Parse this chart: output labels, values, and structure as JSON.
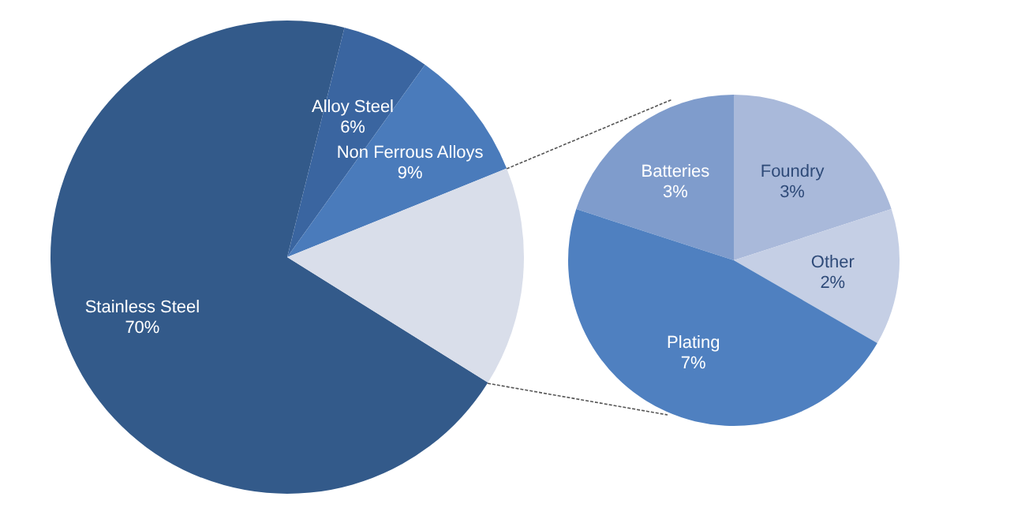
{
  "chart_data": [
    {
      "type": "pie",
      "categories": [
        "Stainless Steel",
        "Alloy Steel",
        "Non Ferrous Alloys",
        null
      ],
      "values": [
        70,
        6,
        9,
        15
      ],
      "colors": [
        "#335a8a",
        "#3a65a0",
        "#4a7bbb",
        "#d9deea"
      ],
      "value_labels": [
        "70%",
        "6%",
        "9%",
        null
      ]
    },
    {
      "type": "pie",
      "categories": [
        "Batteries",
        "Foundry",
        "Other",
        "Plating"
      ],
      "values": [
        3,
        3,
        2,
        7
      ],
      "colors": [
        "#7f9ccc",
        "#a9b9da",
        "#c5cfe5",
        "#4f80c0"
      ],
      "value_labels": [
        "3%",
        "3%",
        "2%",
        "7%"
      ]
    }
  ]
}
